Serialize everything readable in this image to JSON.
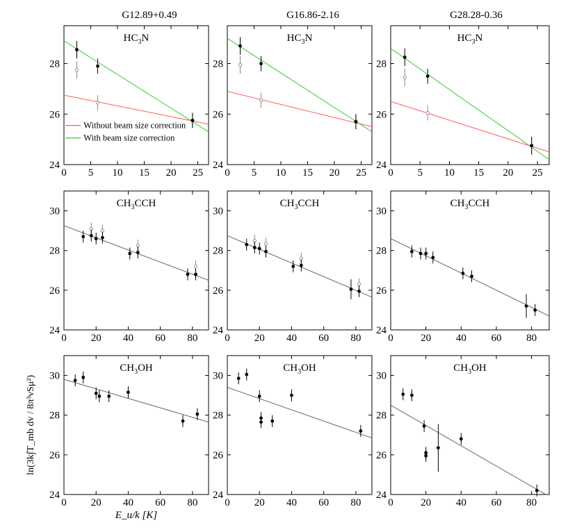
{
  "figure": {
    "column_titles": [
      "G12.89+0.49",
      "G16.86-2.16",
      "G28.28-0.36"
    ],
    "row_molecules": [
      {
        "base": "HC",
        "sub": "3",
        "rest": "N"
      },
      {
        "base": "CH",
        "sub": "3",
        "rest": "CCH"
      },
      {
        "base": "CH",
        "sub": "3",
        "rest": "OH"
      }
    ],
    "y_axis_label": "ln(3k∫T_mb dv / 8π³νSμ²)",
    "x_axis_label": "E_u/k [K]",
    "legend": {
      "without": {
        "label": "Without beam size correction",
        "color": "#ff5a5a"
      },
      "with": {
        "label": "With beam size correction",
        "color": "#33cc33"
      }
    },
    "colors": {
      "fit_line": "#666666",
      "point": "#000000",
      "open_point": "#888888"
    }
  },
  "chart_data": [
    {
      "type": "scatter",
      "source": "G12.89+0.49",
      "molecule": "HC3N",
      "xlim": [
        0,
        27
      ],
      "ylim": [
        24,
        29.5
      ],
      "xticks": [
        0,
        5,
        10,
        15,
        20,
        25
      ],
      "yticks": [
        24,
        26,
        28
      ],
      "series": [
        {
          "name": "With beam size correction",
          "x": [
            2.4,
            6.3,
            24
          ],
          "y": [
            28.55,
            27.9,
            25.75
          ],
          "err": [
            0.35,
            0.3,
            0.3
          ],
          "fit": [
            28.9,
            25.3
          ],
          "fit_color": "#33cc33"
        },
        {
          "name": "Without beam size correction",
          "x": [
            2.4,
            6.3,
            24
          ],
          "y": [
            27.75,
            26.45,
            25.75
          ],
          "err": [
            0.35,
            0.3,
            0.3
          ],
          "fit": [
            26.75,
            25.6
          ],
          "fit_color": "#ff5a5a"
        }
      ],
      "show_legend": true
    },
    {
      "type": "scatter",
      "source": "G16.86-2.16",
      "molecule": "HC3N",
      "xlim": [
        0,
        27
      ],
      "ylim": [
        24,
        29.5
      ],
      "xticks": [
        0,
        5,
        10,
        15,
        20,
        25
      ],
      "yticks": [
        24,
        26,
        28
      ],
      "series": [
        {
          "name": "With beam size correction",
          "x": [
            2.4,
            6.3,
            24
          ],
          "y": [
            28.7,
            28.0,
            25.7
          ],
          "err": [
            0.35,
            0.3,
            0.3
          ],
          "fit": [
            29.0,
            25.3
          ],
          "fit_color": "#33cc33"
        },
        {
          "name": "Without beam size correction",
          "x": [
            2.4,
            6.3,
            24
          ],
          "y": [
            27.95,
            26.55,
            25.7
          ],
          "err": [
            0.35,
            0.3,
            0.3
          ],
          "fit": [
            26.9,
            25.5
          ],
          "fit_color": "#ff5a5a"
        }
      ],
      "show_legend": false
    },
    {
      "type": "scatter",
      "source": "G28.28-0.36",
      "molecule": "HC3N",
      "xlim": [
        0,
        27
      ],
      "ylim": [
        24,
        29.5
      ],
      "xticks": [
        0,
        5,
        10,
        15,
        20,
        25
      ],
      "yticks": [
        24,
        26,
        28
      ],
      "series": [
        {
          "name": "With beam size correction",
          "x": [
            2.4,
            6.3,
            24
          ],
          "y": [
            28.25,
            27.5,
            24.75
          ],
          "err": [
            0.35,
            0.3,
            0.35
          ],
          "fit": [
            28.6,
            24.2
          ],
          "fit_color": "#33cc33"
        },
        {
          "name": "Without beam size correction",
          "x": [
            2.4,
            6.3,
            24
          ],
          "y": [
            27.45,
            26.05,
            24.75
          ],
          "err": [
            0.35,
            0.3,
            0.35
          ],
          "fit": [
            26.5,
            24.5
          ],
          "fit_color": "#ff5a5a"
        }
      ],
      "show_legend": false
    },
    {
      "type": "scatter",
      "source": "G12.89+0.49",
      "molecule": "CH3CCH",
      "xlim": [
        0,
        90
      ],
      "ylim": [
        24,
        31
      ],
      "xticks": [
        0,
        20,
        40,
        60,
        80
      ],
      "yticks": [
        24,
        26,
        28,
        30
      ],
      "series": [
        {
          "name": "Filled",
          "x": [
            12,
            17,
            20,
            24,
            41,
            46,
            77,
            82
          ],
          "y": [
            28.7,
            28.75,
            28.6,
            28.65,
            27.85,
            27.9,
            26.8,
            26.8
          ],
          "err": [
            0.3,
            0.3,
            0.3,
            0.3,
            0.3,
            0.3,
            0.3,
            0.3
          ]
        },
        {
          "name": "Open",
          "x": [
            17,
            24,
            46,
            82
          ],
          "y": [
            29.1,
            29.0,
            28.25,
            27.2
          ],
          "err": [
            0.3,
            0.3,
            0.3,
            0.3
          ]
        }
      ],
      "fit": [
        29.25,
        26.5
      ],
      "fit_color": "#666666"
    },
    {
      "type": "scatter",
      "source": "G16.86-2.16",
      "molecule": "CH3CCH",
      "xlim": [
        0,
        90
      ],
      "ylim": [
        24,
        31
      ],
      "xticks": [
        0,
        20,
        40,
        60,
        80
      ],
      "yticks": [
        24,
        26,
        28,
        30
      ],
      "series": [
        {
          "name": "Filled",
          "x": [
            12,
            17,
            20,
            24,
            41,
            46,
            77,
            82
          ],
          "y": [
            28.3,
            28.15,
            28.1,
            27.95,
            27.2,
            27.25,
            26.05,
            25.95
          ],
          "err": [
            0.3,
            0.3,
            0.3,
            0.3,
            0.3,
            0.3,
            0.5,
            0.3
          ]
        },
        {
          "name": "Open",
          "x": [
            17,
            24,
            46,
            82
          ],
          "y": [
            28.5,
            28.35,
            27.6,
            26.3
          ],
          "err": [
            0.3,
            0.3,
            0.3,
            0.3
          ]
        }
      ],
      "fit": [
        28.75,
        25.65
      ],
      "fit_color": "#666666"
    },
    {
      "type": "scatter",
      "source": "G28.28-0.36",
      "molecule": "CH3CCH",
      "xlim": [
        0,
        90
      ],
      "ylim": [
        24,
        31
      ],
      "xticks": [
        0,
        20,
        40,
        60,
        80
      ],
      "yticks": [
        24,
        26,
        28,
        30
      ],
      "series": [
        {
          "name": "Filled",
          "x": [
            12,
            17,
            20,
            24,
            41,
            46,
            77,
            82
          ],
          "y": [
            27.95,
            27.85,
            27.85,
            27.65,
            26.85,
            26.7,
            25.2,
            25.0
          ],
          "err": [
            0.3,
            0.3,
            0.3,
            0.3,
            0.3,
            0.3,
            0.6,
            0.3
          ]
        }
      ],
      "fit": [
        28.6,
        24.7
      ],
      "fit_color": "#666666"
    },
    {
      "type": "scatter",
      "source": "G12.89+0.49",
      "molecule": "CH3OH",
      "xlim": [
        0,
        90
      ],
      "ylim": [
        24,
        31
      ],
      "xticks": [
        0,
        20,
        40,
        60,
        80
      ],
      "yticks": [
        24,
        26,
        28,
        30
      ],
      "series": [
        {
          "name": "Filled",
          "x": [
            7,
            12,
            20,
            22,
            28,
            40,
            74,
            83
          ],
          "y": [
            29.75,
            29.9,
            29.1,
            28.95,
            28.95,
            29.15,
            27.7,
            28.05
          ],
          "err": [
            0.3,
            0.3,
            0.3,
            0.3,
            0.3,
            0.3,
            0.3,
            0.3
          ]
        }
      ],
      "fit": [
        29.8,
        27.65
      ],
      "fit_color": "#666666"
    },
    {
      "type": "scatter",
      "source": "G16.86-2.16",
      "molecule": "CH3OH",
      "xlim": [
        0,
        90
      ],
      "ylim": [
        24,
        31
      ],
      "xticks": [
        0,
        20,
        40,
        60,
        80
      ],
      "yticks": [
        24,
        26,
        28,
        30
      ],
      "series": [
        {
          "name": "Filled",
          "x": [
            7,
            12,
            20,
            21,
            21,
            28,
            40,
            83
          ],
          "y": [
            29.85,
            30.05,
            28.95,
            27.85,
            27.65,
            27.7,
            29.0,
            27.2
          ],
          "err": [
            0.3,
            0.3,
            0.3,
            0.3,
            0.3,
            0.3,
            0.3,
            0.3
          ]
        }
      ],
      "fit": [
        29.4,
        26.85
      ],
      "fit_color": "#666666"
    },
    {
      "type": "scatter",
      "source": "G28.28-0.36",
      "molecule": "CH3OH",
      "xlim": [
        0,
        90
      ],
      "ylim": [
        24,
        31
      ],
      "xticks": [
        0,
        20,
        40,
        60,
        80
      ],
      "yticks": [
        24,
        26,
        28,
        30
      ],
      "series": [
        {
          "name": "Filled",
          "x": [
            7,
            12,
            19,
            20,
            20,
            27,
            40,
            83
          ],
          "y": [
            29.05,
            29.0,
            27.45,
            26.1,
            25.95,
            26.35,
            26.8,
            24.2
          ],
          "err": [
            0.3,
            0.3,
            0.3,
            0.3,
            0.3,
            1.2,
            0.3,
            0.3
          ]
        }
      ],
      "fit": [
        28.5,
        23.9
      ],
      "fit_color": "#666666"
    }
  ]
}
